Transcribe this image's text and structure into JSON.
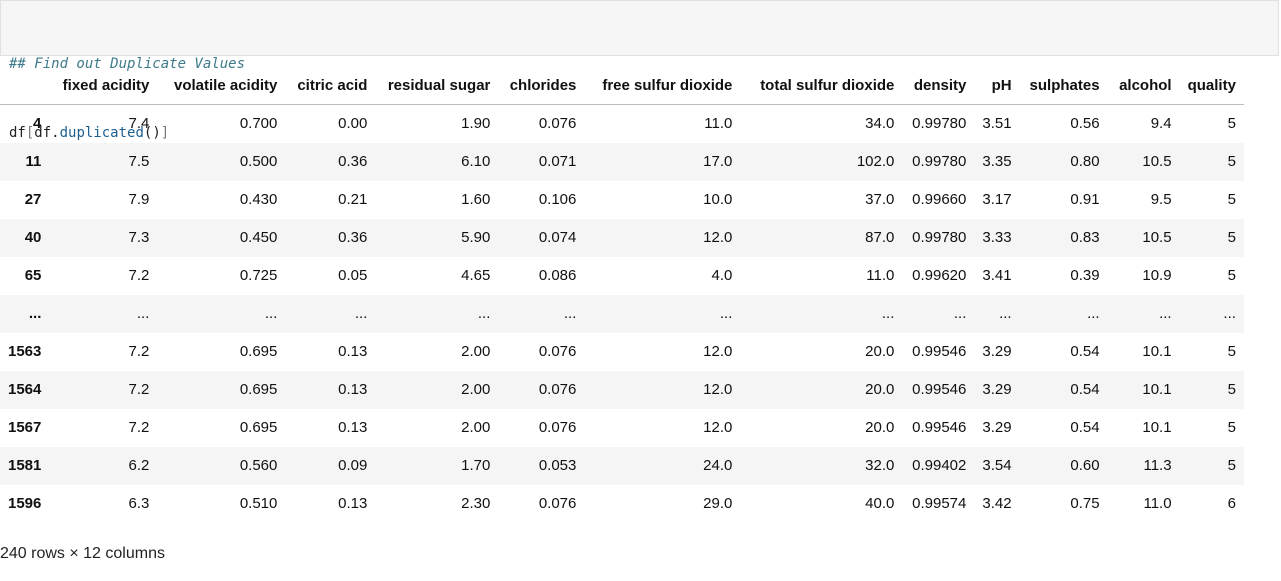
{
  "code_cell": {
    "comment": "## Find out Duplicate Values",
    "code_prefix": "df",
    "code_open_bracket": "[",
    "code_obj": "df.",
    "code_method": "duplicated",
    "code_parens": "()",
    "code_close_bracket": "]"
  },
  "table": {
    "columns": [
      "fixed acidity",
      "volatile acidity",
      "citric acid",
      "residual sugar",
      "chlorides",
      "free sulfur dioxide",
      "total sulfur dioxide",
      "density",
      "pH",
      "sulphates",
      "alcohol",
      "quality"
    ],
    "rows": [
      {
        "index": "4",
        "cells": [
          "7.4",
          "0.700",
          "0.00",
          "1.90",
          "0.076",
          "11.0",
          "34.0",
          "0.99780",
          "3.51",
          "0.56",
          "9.4",
          "5"
        ]
      },
      {
        "index": "11",
        "cells": [
          "7.5",
          "0.500",
          "0.36",
          "6.10",
          "0.071",
          "17.0",
          "102.0",
          "0.99780",
          "3.35",
          "0.80",
          "10.5",
          "5"
        ]
      },
      {
        "index": "27",
        "cells": [
          "7.9",
          "0.430",
          "0.21",
          "1.60",
          "0.106",
          "10.0",
          "37.0",
          "0.99660",
          "3.17",
          "0.91",
          "9.5",
          "5"
        ]
      },
      {
        "index": "40",
        "cells": [
          "7.3",
          "0.450",
          "0.36",
          "5.90",
          "0.074",
          "12.0",
          "87.0",
          "0.99780",
          "3.33",
          "0.83",
          "10.5",
          "5"
        ]
      },
      {
        "index": "65",
        "cells": [
          "7.2",
          "0.725",
          "0.05",
          "4.65",
          "0.086",
          "4.0",
          "11.0",
          "0.99620",
          "3.41",
          "0.39",
          "10.9",
          "5"
        ]
      },
      {
        "index": "...",
        "cells": [
          "...",
          "...",
          "...",
          "...",
          "...",
          "...",
          "...",
          "...",
          "...",
          "...",
          "...",
          "..."
        ]
      },
      {
        "index": "1563",
        "cells": [
          "7.2",
          "0.695",
          "0.13",
          "2.00",
          "0.076",
          "12.0",
          "20.0",
          "0.99546",
          "3.29",
          "0.54",
          "10.1",
          "5"
        ]
      },
      {
        "index": "1564",
        "cells": [
          "7.2",
          "0.695",
          "0.13",
          "2.00",
          "0.076",
          "12.0",
          "20.0",
          "0.99546",
          "3.29",
          "0.54",
          "10.1",
          "5"
        ]
      },
      {
        "index": "1567",
        "cells": [
          "7.2",
          "0.695",
          "0.13",
          "2.00",
          "0.076",
          "12.0",
          "20.0",
          "0.99546",
          "3.29",
          "0.54",
          "10.1",
          "5"
        ]
      },
      {
        "index": "1581",
        "cells": [
          "6.2",
          "0.560",
          "0.09",
          "1.70",
          "0.053",
          "24.0",
          "32.0",
          "0.99402",
          "3.54",
          "0.60",
          "11.3",
          "5"
        ]
      },
      {
        "index": "1596",
        "cells": [
          "6.3",
          "0.510",
          "0.13",
          "2.30",
          "0.076",
          "29.0",
          "40.0",
          "0.99574",
          "3.42",
          "0.75",
          "11.0",
          "6"
        ]
      }
    ],
    "shape": "240 rows × 12 columns"
  }
}
